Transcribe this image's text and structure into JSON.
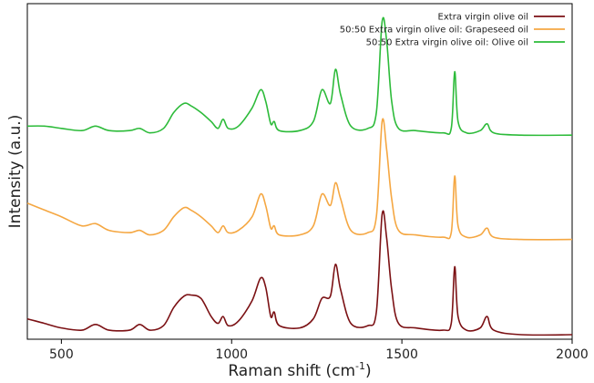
{
  "chart_data": {
    "type": "line",
    "title": "",
    "xlabel": "Raman shift (cm",
    "xlabel_sup": "-1",
    "xlabel_close": ")",
    "ylabel": "Intensity (a.u.)",
    "xlim": [
      400,
      2000
    ],
    "xticks": [
      500,
      1000,
      1500,
      2000
    ],
    "xtick_labels": [
      "500",
      "1000",
      "1500",
      "2000"
    ],
    "y_ticks_shown": false,
    "grid": false,
    "legend_position": "top-right",
    "series": [
      {
        "name": "Extra virgin olive oil",
        "color": "#7b1114",
        "baseline": 0.0,
        "points": [
          [
            400,
            0.07
          ],
          [
            450,
            0.05
          ],
          [
            500,
            0.03
          ],
          [
            560,
            0.02
          ],
          [
            600,
            0.045
          ],
          [
            640,
            0.02
          ],
          [
            700,
            0.02
          ],
          [
            730,
            0.045
          ],
          [
            760,
            0.02
          ],
          [
            800,
            0.04
          ],
          [
            830,
            0.12
          ],
          [
            860,
            0.17
          ],
          [
            880,
            0.175
          ],
          [
            910,
            0.16
          ],
          [
            940,
            0.08
          ],
          [
            960,
            0.05
          ],
          [
            975,
            0.08
          ],
          [
            990,
            0.04
          ],
          [
            1020,
            0.06
          ],
          [
            1060,
            0.15
          ],
          [
            1085,
            0.25
          ],
          [
            1100,
            0.21
          ],
          [
            1115,
            0.08
          ],
          [
            1125,
            0.1
          ],
          [
            1140,
            0.04
          ],
          [
            1200,
            0.03
          ],
          [
            1240,
            0.07
          ],
          [
            1265,
            0.16
          ],
          [
            1290,
            0.17
          ],
          [
            1305,
            0.31
          ],
          [
            1320,
            0.2
          ],
          [
            1350,
            0.05
          ],
          [
            1400,
            0.04
          ],
          [
            1425,
            0.1
          ],
          [
            1442,
            0.53
          ],
          [
            1455,
            0.43
          ],
          [
            1470,
            0.2
          ],
          [
            1490,
            0.05
          ],
          [
            1540,
            0.03
          ],
          [
            1620,
            0.02
          ],
          [
            1645,
            0.05
          ],
          [
            1655,
            0.3
          ],
          [
            1665,
            0.08
          ],
          [
            1690,
            0.02
          ],
          [
            1730,
            0.03
          ],
          [
            1750,
            0.08
          ],
          [
            1770,
            0.02
          ],
          [
            1850,
            0.0
          ],
          [
            2000,
            0.0
          ]
        ]
      },
      {
        "name": "50:50 Extra virgin olive oil: Grapeseed oil",
        "color": "#f5a742",
        "baseline": 0.42,
        "points": [
          [
            400,
            0.16
          ],
          [
            450,
            0.13
          ],
          [
            500,
            0.1
          ],
          [
            560,
            0.06
          ],
          [
            600,
            0.07
          ],
          [
            640,
            0.04
          ],
          [
            700,
            0.03
          ],
          [
            730,
            0.04
          ],
          [
            760,
            0.02
          ],
          [
            800,
            0.04
          ],
          [
            830,
            0.1
          ],
          [
            860,
            0.14
          ],
          [
            880,
            0.13
          ],
          [
            910,
            0.1
          ],
          [
            940,
            0.06
          ],
          [
            960,
            0.03
          ],
          [
            975,
            0.06
          ],
          [
            990,
            0.03
          ],
          [
            1020,
            0.04
          ],
          [
            1060,
            0.1
          ],
          [
            1085,
            0.2
          ],
          [
            1100,
            0.15
          ],
          [
            1115,
            0.05
          ],
          [
            1125,
            0.06
          ],
          [
            1140,
            0.02
          ],
          [
            1200,
            0.02
          ],
          [
            1240,
            0.06
          ],
          [
            1265,
            0.2
          ],
          [
            1290,
            0.15
          ],
          [
            1305,
            0.25
          ],
          [
            1320,
            0.18
          ],
          [
            1350,
            0.04
          ],
          [
            1400,
            0.03
          ],
          [
            1425,
            0.1
          ],
          [
            1442,
            0.52
          ],
          [
            1455,
            0.4
          ],
          [
            1470,
            0.18
          ],
          [
            1490,
            0.04
          ],
          [
            1540,
            0.02
          ],
          [
            1620,
            0.01
          ],
          [
            1645,
            0.03
          ],
          [
            1655,
            0.28
          ],
          [
            1665,
            0.06
          ],
          [
            1690,
            0.01
          ],
          [
            1730,
            0.02
          ],
          [
            1750,
            0.05
          ],
          [
            1770,
            0.01
          ],
          [
            1850,
            0.0
          ],
          [
            2000,
            0.0
          ]
        ]
      },
      {
        "name": "50:50 Extra virgin olive oil: Olive oil",
        "color": "#2dbb3a",
        "baseline": 0.88,
        "points": [
          [
            400,
            0.04
          ],
          [
            450,
            0.04
          ],
          [
            500,
            0.03
          ],
          [
            560,
            0.02
          ],
          [
            600,
            0.04
          ],
          [
            640,
            0.02
          ],
          [
            700,
            0.02
          ],
          [
            730,
            0.03
          ],
          [
            760,
            0.01
          ],
          [
            800,
            0.03
          ],
          [
            830,
            0.1
          ],
          [
            860,
            0.14
          ],
          [
            880,
            0.13
          ],
          [
            910,
            0.1
          ],
          [
            940,
            0.06
          ],
          [
            960,
            0.03
          ],
          [
            975,
            0.07
          ],
          [
            990,
            0.03
          ],
          [
            1020,
            0.04
          ],
          [
            1060,
            0.12
          ],
          [
            1085,
            0.2
          ],
          [
            1100,
            0.15
          ],
          [
            1115,
            0.05
          ],
          [
            1125,
            0.06
          ],
          [
            1140,
            0.02
          ],
          [
            1200,
            0.02
          ],
          [
            1240,
            0.06
          ],
          [
            1265,
            0.2
          ],
          [
            1290,
            0.14
          ],
          [
            1305,
            0.29
          ],
          [
            1320,
            0.18
          ],
          [
            1350,
            0.04
          ],
          [
            1400,
            0.03
          ],
          [
            1425,
            0.1
          ],
          [
            1442,
            0.5
          ],
          [
            1455,
            0.42
          ],
          [
            1470,
            0.15
          ],
          [
            1490,
            0.03
          ],
          [
            1540,
            0.02
          ],
          [
            1620,
            0.01
          ],
          [
            1645,
            0.03
          ],
          [
            1655,
            0.28
          ],
          [
            1665,
            0.06
          ],
          [
            1690,
            0.01
          ],
          [
            1730,
            0.02
          ],
          [
            1750,
            0.05
          ],
          [
            1770,
            0.01
          ],
          [
            1850,
            0.0
          ],
          [
            2000,
            0.0
          ]
        ]
      }
    ]
  }
}
